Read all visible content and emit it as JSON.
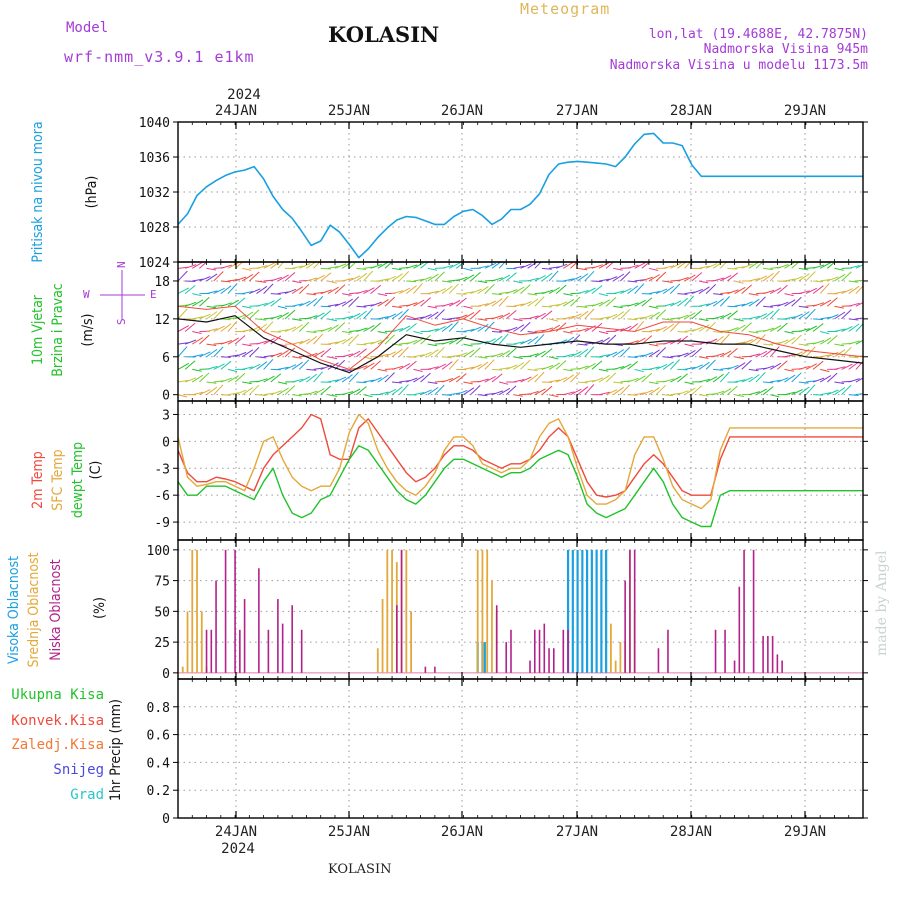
{
  "header": {
    "model_label": "Model",
    "model_name": "wrf-nmm_v3.9.1 e1km",
    "title": "KOLASIN",
    "subtitle": "Meteogram",
    "lonlat": "lon,lat (19.4688E, 42.7875N)",
    "elevation": "Nadmorska Visina 945m",
    "model_elevation": "Nadmorska Visina u modelu 1173.5m",
    "watermark": "made by Angel"
  },
  "footer": {
    "station": "KOLASIN"
  },
  "colors": {
    "pressure": "#1a9fe0",
    "t2m": "#ef4a3c",
    "sfc": "#e3a83a",
    "dewpt": "#22c22a",
    "cloud_high": "#1aa0e0",
    "cloud_mid": "#e3a83a",
    "cloud_low": "#b2218a",
    "wind_speed": "#111111",
    "wind_gust": "#ef4a3c",
    "precip_total": "#22c22a",
    "precip_conv": "#ef4a3c",
    "precip_frz": "#f07a35",
    "precip_snow": "#4a4ae0",
    "precip_grad": "#2ac7c7"
  },
  "chart_data": [
    {
      "type": "line",
      "name": "pressure",
      "ylabel": [
        "Pritisak na nivou mora",
        "(hPa)"
      ],
      "ylim": [
        1024,
        1040
      ],
      "yticks": [
        1024,
        1028,
        1032,
        1036,
        1040
      ],
      "x_day_labels": [
        "24JAN",
        "25JAN",
        "26JAN",
        "27JAN",
        "28JAN",
        "29JAN"
      ],
      "year_label": "2024",
      "x_range_hours": [
        0,
        144
      ],
      "grid": true,
      "x": [
        0,
        2,
        4,
        6,
        8,
        10,
        12,
        14,
        16,
        18,
        20,
        22,
        24,
        26,
        28,
        30,
        32,
        34,
        36,
        38,
        40,
        42,
        44,
        46,
        48,
        50,
        52,
        54,
        56,
        58,
        60,
        62,
        64,
        66,
        68,
        70,
        72,
        74,
        76,
        78,
        80,
        82,
        84,
        86,
        88,
        90,
        92,
        94,
        96,
        98,
        100,
        102,
        104,
        106,
        108,
        110,
        112,
        114,
        116,
        118,
        120,
        122,
        124,
        126,
        128,
        130,
        132,
        134,
        136,
        138,
        140,
        142,
        144
      ],
      "series": [
        {
          "values": [
            1028.3,
            1029.5,
            1031.6,
            1032.6,
            1033.3,
            1033.9,
            1034.3,
            1034.5,
            1034.9,
            1033.5,
            1031.5,
            1030.0,
            1029.0,
            1027.5,
            1025.9,
            1026.4,
            1028.2,
            1027.4,
            1026.0,
            1024.5,
            1025.5,
            1026.8,
            1027.9,
            1028.8,
            1029.2,
            1029.1,
            1028.7,
            1028.3,
            1028.3,
            1029.2,
            1029.8,
            1030.0,
            1029.3,
            1028.3,
            1028.9,
            1030.0,
            1030.0,
            1030.6,
            1031.8,
            1034.0,
            1035.2,
            1035.4,
            1035.5,
            1035.4,
            1035.3,
            1035.2,
            1034.9,
            1036.0,
            1037.5,
            1038.6,
            1038.7,
            1037.6,
            1037.6,
            1037.3,
            1035.1,
            1033.8,
            1033.8,
            1033.8,
            1033.8,
            1033.8,
            1033.8,
            1033.8,
            1033.8,
            1033.8,
            1033.8,
            1033.8,
            1033.8,
            1033.8,
            1033.8,
            1033.8,
            1033.8,
            1033.8,
            1033.8
          ]
        }
      ]
    },
    {
      "type": "line",
      "name": "wind",
      "ylabel": [
        "10m Vjetar",
        "Brzina i Pravac",
        "(m/s)"
      ],
      "compass": {
        "n": "N",
        "s": "S",
        "w": "W",
        "e": "E"
      },
      "ylim": [
        -1,
        21
      ],
      "yticks": [
        0,
        6,
        12,
        18
      ],
      "grid": true,
      "x": [
        0,
        6,
        12,
        18,
        24,
        30,
        36,
        42,
        48,
        54,
        60,
        66,
        72,
        78,
        84,
        90,
        96,
        102,
        108,
        114,
        120,
        126,
        132,
        138,
        144
      ],
      "series": [
        {
          "name": "speed",
          "values": [
            12.0,
            11.5,
            12.5,
            9.0,
            7.0,
            5.0,
            3.5,
            6.0,
            9.5,
            8.5,
            9.0,
            8.0,
            7.5,
            8.0,
            8.5,
            8.0,
            8.0,
            8.5,
            8.5,
            8.0,
            8.0,
            7.0,
            6.0,
            5.5,
            5.0
          ]
        },
        {
          "name": "gust",
          "values": [
            14.0,
            13.5,
            14.0,
            10.0,
            8.0,
            5.5,
            4.0,
            7.5,
            12.5,
            11.0,
            12.0,
            10.5,
            9.5,
            10.0,
            11.0,
            10.5,
            10.0,
            11.5,
            11.5,
            10.0,
            9.5,
            8.0,
            7.0,
            6.5,
            6.0
          ]
        }
      ]
    },
    {
      "type": "line",
      "name": "temperature",
      "ylabel": [
        "2m Temp",
        "SFC Temp",
        "dewpt Temp",
        "(C)"
      ],
      "ylim": [
        -11,
        4.5
      ],
      "yticks": [
        -9,
        -6,
        -3,
        0,
        3
      ],
      "grid": true,
      "x": [
        0,
        2,
        4,
        6,
        8,
        10,
        12,
        14,
        16,
        18,
        20,
        22,
        24,
        26,
        28,
        30,
        32,
        34,
        36,
        38,
        40,
        42,
        44,
        46,
        48,
        50,
        52,
        54,
        56,
        58,
        60,
        62,
        64,
        66,
        68,
        70,
        72,
        74,
        76,
        78,
        80,
        82,
        84,
        86,
        88,
        90,
        92,
        94,
        96,
        98,
        100,
        102,
        104,
        106,
        108,
        110,
        112,
        114,
        116,
        118,
        120,
        122,
        124,
        126,
        128,
        130,
        132,
        134,
        136,
        138,
        140,
        142,
        144
      ],
      "series": [
        {
          "name": "2m Temp",
          "values": [
            -1.0,
            -3.5,
            -4.5,
            -4.5,
            -4.0,
            -4.2,
            -4.5,
            -5.0,
            -5.5,
            -3.0,
            -1.5,
            -0.5,
            0.5,
            1.5,
            3.0,
            2.5,
            -1.5,
            -2.0,
            -2.0,
            1.5,
            2.5,
            1.0,
            -0.5,
            -2.0,
            -3.5,
            -4.5,
            -4.0,
            -3.0,
            -1.5,
            -0.5,
            -0.5,
            -1.0,
            -2.0,
            -2.5,
            -3.0,
            -2.5,
            -2.5,
            -2.0,
            -1.0,
            0.5,
            1.5,
            0.5,
            -2.0,
            -4.5,
            -6.0,
            -6.2,
            -6.0,
            -5.5,
            -4.0,
            -2.5,
            -1.5,
            -2.5,
            -4.0,
            -5.5,
            -6.0,
            -6.0,
            -6.0,
            -2.0,
            0.5,
            0.5,
            0.5,
            0.5,
            0.5,
            0.5,
            0.5,
            0.5,
            0.5,
            0.5,
            0.5,
            0.5,
            0.5,
            0.5,
            0.5
          ]
        },
        {
          "name": "SFC Temp",
          "values": [
            0.5,
            -4.0,
            -5.0,
            -4.8,
            -4.5,
            -4.5,
            -5.0,
            -5.5,
            -3.0,
            0.0,
            0.5,
            -2.0,
            -4.0,
            -5.0,
            -5.5,
            -5.0,
            -5.0,
            -3.0,
            1.0,
            3.0,
            2.0,
            -1.0,
            -3.0,
            -4.5,
            -5.5,
            -6.0,
            -5.0,
            -3.5,
            -1.0,
            0.5,
            0.5,
            -0.5,
            -2.5,
            -3.0,
            -3.5,
            -3.0,
            -3.0,
            -2.0,
            0.5,
            2.0,
            2.5,
            0.5,
            -3.0,
            -6.0,
            -7.0,
            -7.0,
            -6.5,
            -5.5,
            -1.5,
            0.5,
            0.5,
            -2.0,
            -5.0,
            -6.5,
            -7.0,
            -7.5,
            -6.5,
            -1.0,
            1.5,
            1.5,
            1.5,
            1.5,
            1.5,
            1.5,
            1.5,
            1.5,
            1.5,
            1.5,
            1.5,
            1.5,
            1.5,
            1.5,
            1.5
          ]
        },
        {
          "name": "dewpt Temp",
          "values": [
            -4.5,
            -6.0,
            -6.0,
            -5.0,
            -5.0,
            -5.0,
            -5.5,
            -6.0,
            -6.5,
            -4.5,
            -3.0,
            -6.0,
            -8.0,
            -8.5,
            -8.0,
            -6.5,
            -6.0,
            -4.0,
            -2.0,
            -0.5,
            -1.0,
            -2.5,
            -4.0,
            -5.5,
            -6.5,
            -7.0,
            -6.0,
            -4.5,
            -3.0,
            -2.0,
            -2.0,
            -2.5,
            -3.0,
            -3.5,
            -4.0,
            -3.5,
            -3.5,
            -3.0,
            -2.0,
            -1.5,
            -1.0,
            -1.5,
            -4.0,
            -7.0,
            -8.0,
            -8.5,
            -8.0,
            -7.5,
            -6.0,
            -4.5,
            -3.0,
            -4.5,
            -7.0,
            -8.5,
            -9.0,
            -9.5,
            -9.5,
            -6.0,
            -5.5,
            -5.5,
            -5.5,
            -5.5,
            -5.5,
            -5.5,
            -5.5,
            -5.5,
            -5.5,
            -5.5,
            -5.5,
            -5.5,
            -5.5,
            -5.5,
            -5.5
          ]
        }
      ]
    },
    {
      "type": "bar",
      "name": "clouds",
      "ylabel": [
        "Visoka Oblacnost",
        "Srednja Oblacnost",
        "Niska Oblacnost",
        "(%)"
      ],
      "ylim": [
        -5,
        108
      ],
      "yticks": [
        0,
        25,
        50,
        75,
        100
      ],
      "grid": true,
      "series": [
        {
          "name": "Visoka Oblacnost",
          "x": [
            63,
            64,
            64.5,
            82,
            83,
            84,
            85,
            86,
            87,
            88,
            89,
            90
          ],
          "values": [
            25,
            25,
            25,
            100,
            100,
            100,
            100,
            100,
            100,
            100,
            100,
            100
          ]
        },
        {
          "name": "Srednja Oblacnost",
          "x": [
            1,
            2,
            3,
            4,
            5,
            6,
            42,
            43,
            44,
            45,
            46,
            47,
            48,
            49,
            63,
            64,
            65,
            66,
            67,
            91,
            92,
            93,
            94,
            95,
            96
          ],
          "values": [
            5,
            50,
            100,
            100,
            50,
            5,
            20,
            60,
            100,
            100,
            90,
            100,
            100,
            50,
            100,
            100,
            100,
            75,
            50,
            40,
            10,
            25,
            25,
            100,
            50
          ]
        },
        {
          "name": "Niska Oblacnost",
          "x": [
            6,
            7,
            8,
            10,
            12,
            13,
            14,
            17,
            19,
            21,
            22,
            24,
            26,
            46,
            47,
            52,
            54,
            67,
            69,
            70,
            74,
            75,
            76,
            77,
            78,
            79,
            81,
            82,
            94,
            95,
            96,
            101,
            103,
            113,
            115,
            117,
            118,
            119,
            121,
            123,
            124,
            125,
            126,
            127
          ],
          "values": [
            35,
            35,
            75,
            100,
            100,
            35,
            60,
            85,
            35,
            60,
            40,
            55,
            35,
            55,
            100,
            5,
            5,
            55,
            25,
            35,
            10,
            35,
            35,
            40,
            20,
            20,
            35,
            35,
            75,
            100,
            100,
            20,
            35,
            35,
            35,
            10,
            70,
            100,
            100,
            30,
            30,
            30,
            15,
            10
          ]
        }
      ]
    },
    {
      "type": "bar",
      "name": "precip",
      "ylabel": [
        "1hr Precip (mm)"
      ],
      "legend": [
        "Ukupna Kisa",
        "Konvek.Kisa",
        "Zaledj.Kisa",
        "Snijeg",
        "Grad"
      ],
      "ylim": [
        0,
        1.0
      ],
      "yticks": [
        0,
        0.2,
        0.4,
        0.6,
        0.8
      ],
      "grid": true,
      "x_day_labels": [
        "24JAN",
        "25JAN",
        "26JAN",
        "27JAN",
        "28JAN",
        "29JAN"
      ],
      "year_label": "2024",
      "series": []
    }
  ]
}
